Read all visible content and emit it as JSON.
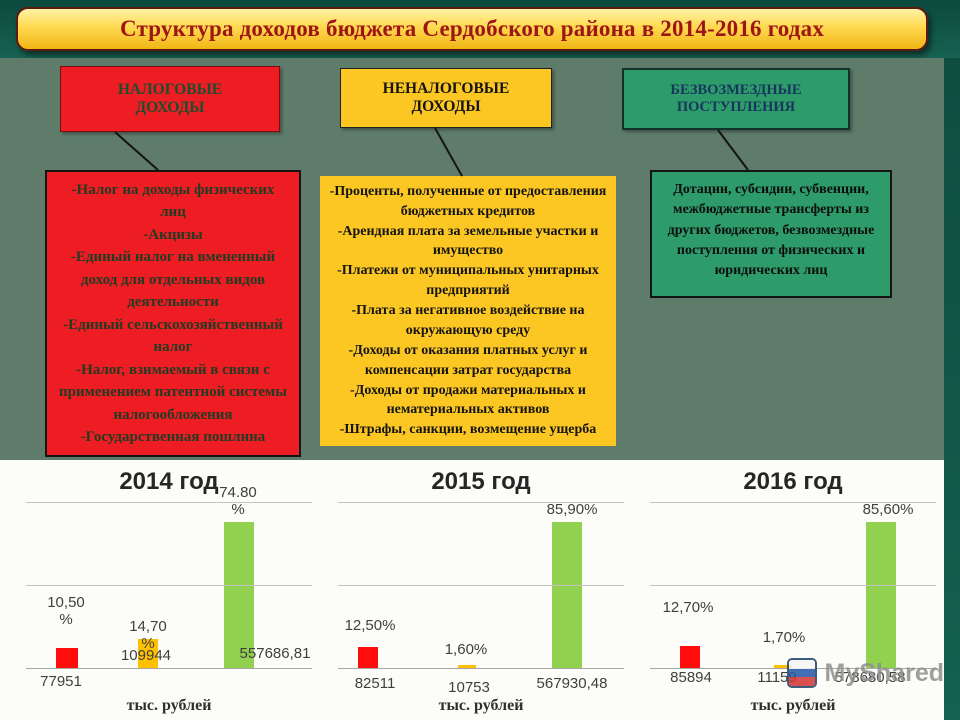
{
  "title": "Структура доходов бюджета Сердобского района в 2014-2016 годах",
  "boxes": {
    "tax": {
      "header": "НАЛОГОВЫЕ\nДОХОДЫ",
      "details": "-Налог на доходы физических лиц\n-Акцизы\n-Единый налог на вмененный доход для отдельных видов деятельности\n-Единый сельскохозяйственный налог\n-Налог, взимаемый в связи с применением патентной системы налогообложения\n-Государственная пошлина"
    },
    "nontax": {
      "header": "НЕНАЛОГОВЫЕ\nДОХОДЫ",
      "details": "-Проценты, полученные от предоставления бюджетных кредитов\n-Арендная плата за земельные участки и имущество\n-Платежи от муниципальных унитарных предприятий\n-Плата за негативное воздействие на окружающую среду\n-Доходы от оказания платных услуг и компенсации затрат государства\n-Доходы от продажи материальных и нематериальных активов\n-Штрафы, санкции, возмещение ущерба"
    },
    "gratuitous": {
      "header": "БЕЗВОЗМЕЗДНЫЕ\nПОСТУПЛЕНИЯ",
      "details": "Дотации, субсидии, субвенции, межбюджетные трансферты из других бюджетов, безвозмездные поступления от физических и юридических лиц"
    }
  },
  "chart_data": [
    {
      "type": "bar",
      "title": "2014 год",
      "xlabel": "тыс. рублей",
      "categories": [
        "Налоговые доходы",
        "Неналоговые доходы",
        "Безвозмездные поступления"
      ],
      "percent": [
        10.5,
        14.7,
        74.8
      ],
      "values": [
        77951,
        109944,
        557686.81
      ],
      "percent_labels": [
        "10,50\n%",
        "14,70\n%",
        "74.80\n%"
      ],
      "value_labels": [
        "77951",
        "109944",
        "557686,81"
      ],
      "bar_colors": [
        "#ff0d0d",
        "#ffc000",
        "#92d050"
      ],
      "ylim": [
        0,
        100
      ],
      "grid": true,
      "legend": false
    },
    {
      "type": "bar",
      "title": "2015 год",
      "xlabel": "тыс. рублей",
      "categories": [
        "Налоговые доходы",
        "Неналоговые доходы",
        "Безвозмездные поступления"
      ],
      "percent": [
        12.5,
        1.6,
        85.9
      ],
      "values": [
        82511,
        10753,
        567930.48
      ],
      "percent_labels": [
        "12,50%",
        "1,60%",
        "85,90%"
      ],
      "value_labels": [
        "82511",
        "10753",
        "567930,48"
      ],
      "bar_colors": [
        "#ff0d0d",
        "#ffc000",
        "#92d050"
      ],
      "ylim": [
        0,
        100
      ],
      "grid": true,
      "legend": false
    },
    {
      "type": "bar",
      "title": "2016 год",
      "xlabel": "тыс. рублей",
      "categories": [
        "Налоговые доходы",
        "Неналоговые доходы",
        "Безвозмездные поступления"
      ],
      "percent": [
        12.7,
        1.7,
        85.6
      ],
      "values": [
        85894,
        11159,
        578680.58
      ],
      "percent_labels": [
        "12,70%",
        "1,70%",
        "85,60%"
      ],
      "value_labels": [
        "85894",
        "11159",
        "578680,58"
      ],
      "bar_colors": [
        "#ff0d0d",
        "#ffc000",
        "#92d050"
      ],
      "ylim": [
        0,
        100
      ],
      "grid": true,
      "legend": false
    }
  ],
  "watermark": {
    "text": "MyShared"
  }
}
